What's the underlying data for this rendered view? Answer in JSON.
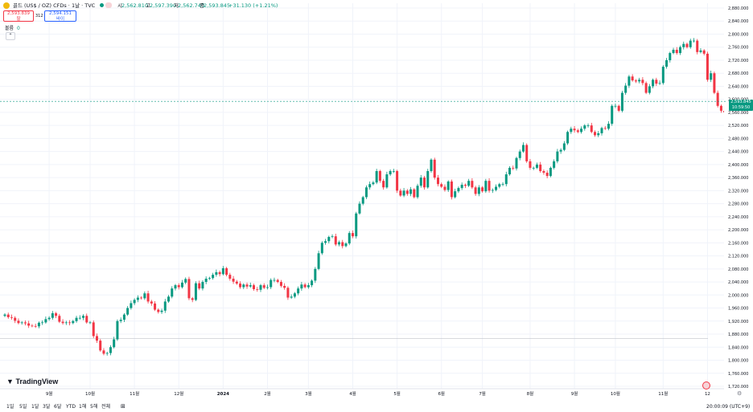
{
  "header": {
    "symbol_title": "골드 (US$ / OZ) CFDs · 1날 · TVC",
    "ohlc": {
      "open_label": "시",
      "open": "2,562.810",
      "high_label": "고",
      "high": "2,597.390",
      "low_label": "저",
      "low": "2,562.740",
      "close_label": "종",
      "close": "2,593.845",
      "change": "+31.130 (+1.21%)"
    },
    "sell_price": "2,593.839",
    "sell_label": "팔",
    "spread": "312",
    "buy_price": "2,594.151",
    "buy_label": "바이",
    "volume_label": "볼륨",
    "volume_value": "0"
  },
  "price_label": {
    "price": "2,593.845",
    "countdown": "10:59:50"
  },
  "footer": {
    "timeframes": [
      "1일",
      "5일",
      "1달",
      "3달",
      "6달",
      "YTD",
      "1해",
      "5해",
      "전체"
    ],
    "clock": "20:00:09 (UTC+9)",
    "logo_text": "TradingView",
    "colors": {
      "up": "#089981",
      "down": "#f23645"
    }
  },
  "chart_data": {
    "type": "candlestick",
    "title": "골드 (US$ / OZ) CFDs · 1날 · TVC",
    "ylim": [
      1700,
      2860
    ],
    "y_ticks": [
      1720,
      1760,
      1800,
      1840,
      1880,
      1920,
      1960,
      2000,
      2040,
      2080,
      2120,
      2160,
      2200,
      2240,
      2280,
      2320,
      2360,
      2400,
      2440,
      2480,
      2520,
      2560,
      2600,
      2640,
      2680,
      2720,
      2760,
      2800,
      2840,
      2880
    ],
    "y_tick_labels": [
      "1,720.000",
      "1,760.000",
      "1,800.000",
      "1,840.000",
      "1,880.000",
      "1,920.000",
      "1,960.000",
      "2,000.000",
      "2,040.000",
      "2,080.000",
      "2,120.000",
      "2,160.000",
      "2,200.000",
      "2,240.000",
      "2,280.000",
      "2,320.000",
      "2,360.000",
      "2,400.000",
      "2,440.000",
      "2,480.000",
      "2,520.000",
      "2,560.000",
      "2,600.000",
      "2,640.000",
      "2,680.000",
      "2,720.000",
      "2,760.000",
      "2,800.000",
      "2,840.000",
      "2,880.000"
    ],
    "x_labels": [
      "9월",
      "10월",
      "11월",
      "12월",
      "2024",
      "2월",
      "3월",
      "4월",
      "5월",
      "6월",
      "7월",
      "8월",
      "9월",
      "10월",
      "11월",
      "12"
    ],
    "x_label_idx": [
      13,
      25,
      38,
      51,
      64,
      77,
      89,
      102,
      115,
      128,
      140,
      154,
      167,
      179,
      193,
      206
    ],
    "grid": true,
    "last_price": 2593.845,
    "reference_line": 1867,
    "close_series": [
      1940,
      1932,
      1930,
      1921,
      1914,
      1916,
      1913,
      1906,
      1905,
      1904,
      1915,
      1916,
      1926,
      1930,
      1944,
      1936,
      1918,
      1914,
      1916,
      1914,
      1920,
      1930,
      1930,
      1936,
      1916,
      1916,
      1874,
      1860,
      1830,
      1820,
      1822,
      1840,
      1864,
      1920,
      1924,
      1940,
      1960,
      1975,
      1985,
      1992,
      1990,
      2005,
      1980,
      1974,
      1955,
      1948,
      1952,
      1980,
      1995,
      2020,
      2030,
      2024,
      2038,
      2049,
      1990,
      1985,
      2036,
      2020,
      2040,
      2050,
      2052,
      2062,
      2070,
      2064,
      2082,
      2062,
      2050,
      2041,
      2035,
      2024,
      2032,
      2026,
      2030,
      2018,
      2016,
      2030,
      2022,
      2024,
      2046,
      2046,
      2040,
      2028,
      2022,
      1992,
      1995,
      2005,
      2020,
      2032,
      2024,
      2030,
      2044,
      2080,
      2128,
      2160,
      2165,
      2178,
      2180,
      2155,
      2162,
      2150,
      2158,
      2190,
      2180,
      2250,
      2280,
      2300,
      2330,
      2340,
      2345,
      2380,
      2350,
      2330,
      2370,
      2380,
      2380,
      2320,
      2305,
      2320,
      2310,
      2324,
      2300,
      2335,
      2360,
      2330,
      2380,
      2415,
      2360,
      2340,
      2332,
      2322,
      2348,
      2300,
      2318,
      2328,
      2338,
      2335,
      2350,
      2330,
      2310,
      2330,
      2318,
      2350,
      2320,
      2322,
      2332,
      2340,
      2340,
      2370,
      2390,
      2388,
      2420,
      2440,
      2460,
      2410,
      2390,
      2390,
      2400,
      2380,
      2375,
      2365,
      2390,
      2410,
      2440,
      2445,
      2465,
      2500,
      2510,
      2505,
      2500,
      2510,
      2520,
      2520,
      2500,
      2490,
      2496,
      2512,
      2510,
      2525,
      2580,
      2580,
      2565,
      2620,
      2642,
      2670,
      2658,
      2655,
      2660,
      2650,
      2620,
      2640,
      2660,
      2648,
      2650,
      2700,
      2720,
      2742,
      2752,
      2742,
      2760,
      2770,
      2760,
      2780,
      2780,
      2745,
      2750,
      2740,
      2660,
      2680,
      2620,
      2580,
      2565,
      2560,
      2594
    ],
    "open_price": 2562.81,
    "high_price": 2597.39,
    "low_price": 2562.74
  }
}
